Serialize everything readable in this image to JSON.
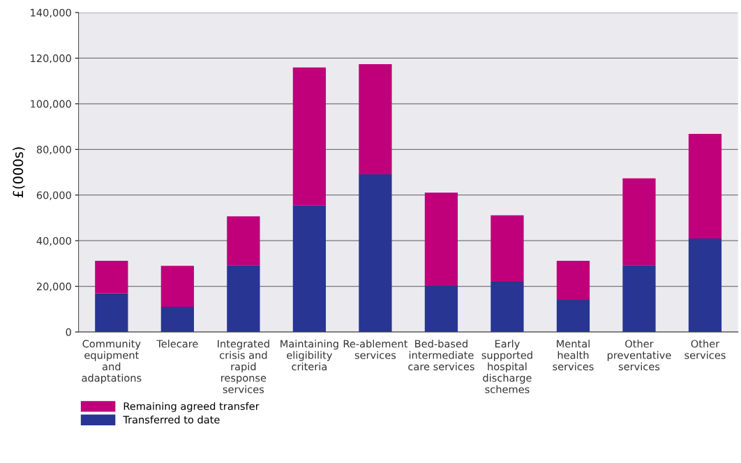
{
  "chart_data": {
    "type": "bar",
    "stacked": true,
    "ylabel": "£(000s)",
    "categories": [
      "Community\nequipment\nand\nadaptations",
      "Telecare",
      "Integrated\ncrisis and\nrapid\nresponse\nservices",
      "Maintaining\neligibility\ncriteria",
      "Re-ablement\nservices",
      "Bed-based\nintermediate\ncare services",
      "Early\nsupported\nhospital\ndischarge\nschemes",
      "Mental\nhealth\nservices",
      "Other\npreventative\nservices",
      "Other\nservices"
    ],
    "series": [
      {
        "name": "Transferred to date",
        "color": "#283593",
        "values": [
          17000,
          11000,
          29300,
          55600,
          69100,
          20200,
          22000,
          14100,
          29300,
          41000
        ]
      },
      {
        "name": "Remaining agreed transfer",
        "color": "#c0007a",
        "values": [
          14200,
          18000,
          21400,
          60300,
          48300,
          40900,
          29100,
          17100,
          38000,
          45800
        ]
      }
    ],
    "ylim": [
      0,
      140000
    ],
    "yticks": [
      {
        "value": 0,
        "label": "0"
      },
      {
        "value": 20000,
        "label": "20,000"
      },
      {
        "value": 40000,
        "label": "40,000"
      },
      {
        "value": 60000,
        "label": "60,000"
      },
      {
        "value": 80000,
        "label": "80,000"
      },
      {
        "value": 100000,
        "label": "100,000"
      },
      {
        "value": 120000,
        "label": "120,000"
      },
      {
        "value": 140000,
        "label": "140,000"
      }
    ],
    "grid": "y",
    "legend": "bottom left"
  }
}
